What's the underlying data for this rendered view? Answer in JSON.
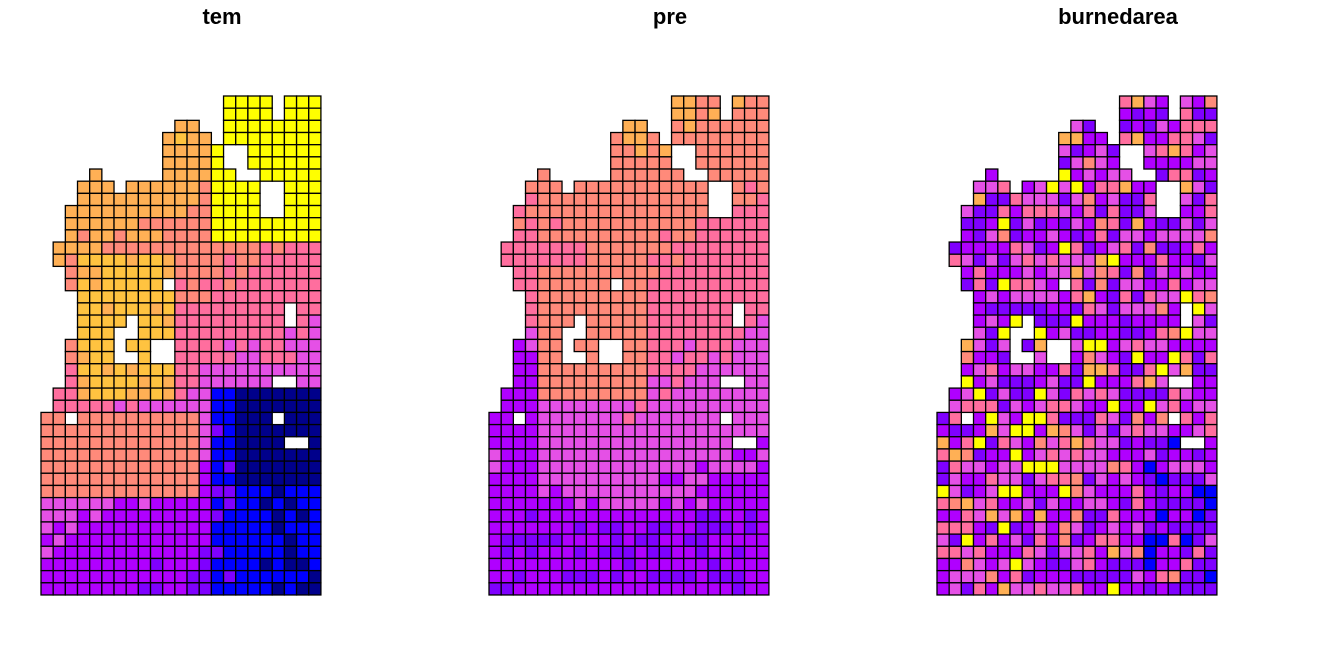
{
  "figure": {
    "panels": [
      {
        "title": "tem"
      },
      {
        "title": "pre"
      },
      {
        "title": "burnedarea"
      }
    ]
  },
  "palette": {
    "darkest": "#00008B",
    "blue": "#0000FF",
    "violet": "#7F00FF",
    "purple": "#B000FF",
    "magenta": "#E550E6",
    "pink": "#FF6E9E",
    "salmon": "#FF8A7A",
    "orange": "#FFB055",
    "gold": "#FFC340",
    "yellow": "#FFFF00",
    "cell_border": "#000000",
    "background": "#FFFFFF"
  },
  "map_data": {
    "type": "grid-choropleth",
    "grid": {
      "rows": 41,
      "cols": 23,
      "mask": [
        "...............FFFF.FFF",
        "...............FFFF.FFF",
        "...........FF..FFFFFFFF",
        "..........FFFF.FFFFFFFF",
        "..........FFFFF..FFFFFF",
        "..........FFFFF..FFFFFF",
        "....F.....FFFFFF..FFFFF",
        "...FFF.FFFFFFFFFFF..FFF",
        "...FFFFFFFFFFFFFFF..FFF",
        "..FFFFFFFFFFFFFFFF..FFF",
        "..FFFFFFFFFFFFFFFFFFFFF",
        "..FFFFFFFFFFFFFFFFFFFFF",
        ".FFFFFFFFFFFFFFFFFFFFFF",
        ".FFFFFFFFFFFFFFFFFFFFFF",
        "..FFFFFFFFFFFFFFFFFFFFF",
        "..FFFFFFFF.FFFFFFFFFFFF",
        "...FFFFFFFFFFFFFFFFFFFF",
        "...FFFFFFFFFFFFFFFFF.FF",
        "...FFFF.FFFFFFFFFFFF.FF",
        "...FFF..FFFFFFFFFFFFFFF",
        "..FFFF.FF..FFFFFFFFFFFF",
        "..FFFF..F..FFFFFFFFFFFF",
        "..FFFFFFFFFFFFFFFFFFFFF",
        "..FFFFFFFFFFFFFFFFF..FF",
        ".FFFFFFFFFFFFFFFFFFFFFF",
        ".FFFFFFFFFFFFFFFFFFFFFF",
        "FF.FFFFFFFFFFFFFFFF.FFF",
        "FFFFFFFFFFFFFFFFFFFFFFF",
        "FFFFFFFFFFFFFFFFFFFF..F",
        "FFFFFFFFFFFFFFFFFFFFFFF",
        "FFFFFFFFFFFFFFFFFFFFFFF",
        "FFFFFFFFFFFFFFFFFFFFFFF",
        "FFFFFFFFFFFFFFFFFFFFFFF",
        "FFFFFFFFFFFFFFFFFFFFFFF",
        "FFFFFFFFFFFFFFFFFFFFFFF",
        "FFFFFFFFFFFFFFFFFFFFFFF",
        "FFFFFFFFFFFFFFFFFFFFFFF",
        "FFFFFFFFFFFFFFFFFFFFFFF",
        "FFFFFFFFFFFFFFFFFFFFFFF",
        "FFFFFFFFFFFFFFFFFFFFFFF",
        "FFFFFFFFFFFFFFFFFFFFFFF"
      ]
    },
    "layers": [
      {
        "name": "tem",
        "description": "warm (yellow/orange) in north and west, cold (dark blue) in south-east core",
        "gradient": [
          "#00008B",
          "#0000FF",
          "#7F00FF",
          "#B000FF",
          "#E550E6",
          "#FF6E9E",
          "#FF8A7A",
          "#FFB055",
          "#FFC340",
          "#FFFF00"
        ]
      },
      {
        "name": "pre",
        "description": "pink/salmon in north and centre, purple/violet in south",
        "gradient": [
          "#7F00FF",
          "#B000FF",
          "#E550E6",
          "#FF6E9E",
          "#FF8A7A",
          "#FFB055"
        ]
      },
      {
        "name": "burnedarea",
        "description": "mixed patchy values: mostly blue/violet with scattered pink, orange and yellow cells",
        "gradient": [
          "#00008B",
          "#0000FF",
          "#7F00FF",
          "#B000FF",
          "#E550E6",
          "#FF6E9E",
          "#FF8A7A",
          "#FFB055",
          "#FFFF00"
        ]
      }
    ]
  }
}
